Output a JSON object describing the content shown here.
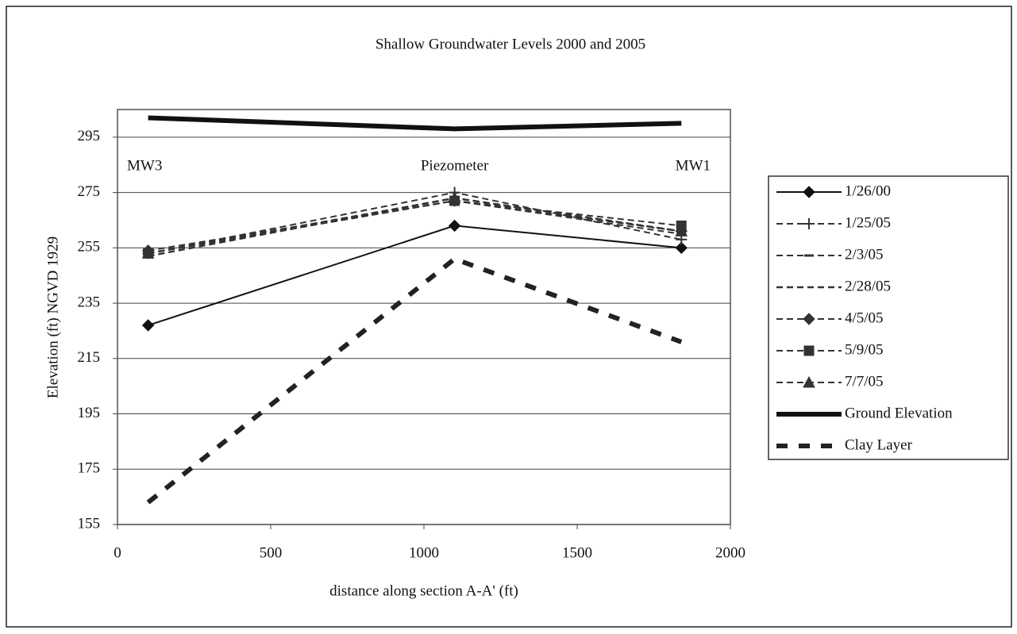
{
  "chart_data": {
    "type": "line",
    "title": "Shallow Groundwater Levels 2000 and 2005",
    "x_label": "distance along section A-A' (ft)",
    "y_label": "Elevation (ft) NGVD 1929",
    "annotations": [
      "MW3",
      "Piezometer",
      "MW1"
    ],
    "x": [
      100,
      1100,
      1840
    ],
    "xlim": [
      0,
      2000
    ],
    "xticks": [
      0,
      500,
      1000,
      1500,
      2000
    ],
    "ylim": [
      155,
      305
    ],
    "yticks": [
      155,
      175,
      195,
      215,
      235,
      255,
      275,
      295
    ],
    "grid": true,
    "legend": "right",
    "series": [
      {
        "name": "1/26/00",
        "color": "#111111",
        "marker": "diamond",
        "dash": "solid",
        "width": 2,
        "values": [
          227,
          263,
          255
        ]
      },
      {
        "name": "1/25/05",
        "color": "#333333",
        "marker": "plus",
        "dash": "dashed",
        "width": 2,
        "values": [
          253,
          275,
          258
        ]
      },
      {
        "name": "2/3/05",
        "color": "#333333",
        "marker": "dash",
        "dash": "dashed",
        "width": 2,
        "values": [
          253,
          272,
          260
        ]
      },
      {
        "name": "2/28/05",
        "color": "#333333",
        "marker": "none",
        "dash": "dashed",
        "width": 2.5,
        "values": [
          252,
          273,
          261
        ]
      },
      {
        "name": "4/5/05",
        "color": "#333333",
        "marker": "diamond",
        "dash": "dashed",
        "width": 2,
        "values": [
          254,
          272,
          261
        ]
      },
      {
        "name": "5/9/05",
        "color": "#333333",
        "marker": "square",
        "dash": "dashed",
        "width": 2,
        "values": [
          253,
          272,
          263
        ]
      },
      {
        "name": "7/7/05",
        "color": "#333333",
        "marker": "triangle",
        "dash": "dashed",
        "width": 2,
        "values": [
          253,
          273,
          261
        ]
      },
      {
        "name": "Ground Elevation",
        "color": "#111111",
        "marker": "none",
        "dash": "solid",
        "width": 6,
        "values": [
          302,
          298,
          300
        ]
      },
      {
        "name": "Clay Layer",
        "color": "#222222",
        "marker": "none",
        "dash": "heavy",
        "width": 6,
        "values": [
          163,
          251,
          221
        ]
      }
    ]
  }
}
